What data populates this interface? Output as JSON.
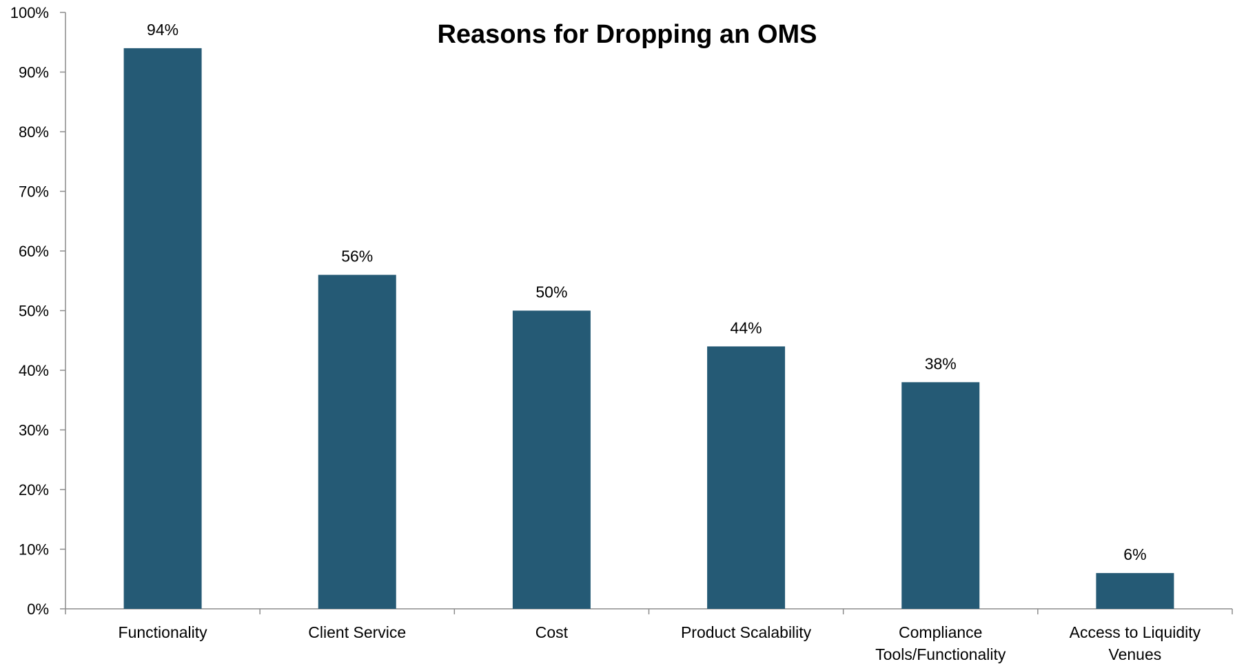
{
  "chart_data": {
    "type": "bar",
    "title": "Reasons for Dropping an OMS",
    "xlabel": "",
    "ylabel": "",
    "categories": [
      "Functionality",
      "Client Service",
      "Cost",
      "Product Scalability",
      "Compliance Tools/Functionality",
      "Access to Liquidity Venues"
    ],
    "category_lines": [
      [
        "Functionality"
      ],
      [
        "Client Service"
      ],
      [
        "Cost"
      ],
      [
        "Product Scalability"
      ],
      [
        "Compliance",
        "Tools/Functionality"
      ],
      [
        "Access to Liquidity",
        "Venues"
      ]
    ],
    "values": [
      94,
      56,
      50,
      44,
      38,
      6
    ],
    "data_labels": [
      "94%",
      "56%",
      "50%",
      "44%",
      "38%",
      "6%"
    ],
    "ylim": [
      0,
      100
    ],
    "y_ticks": [
      0,
      10,
      20,
      30,
      40,
      50,
      60,
      70,
      80,
      90,
      100
    ],
    "y_tick_labels": [
      "0%",
      "10%",
      "20%",
      "30%",
      "40%",
      "50%",
      "60%",
      "70%",
      "80%",
      "90%",
      "100%"
    ],
    "grid": false,
    "legend": "none",
    "bar_color": "#255a75",
    "axis_color": "#8c8c8c"
  }
}
